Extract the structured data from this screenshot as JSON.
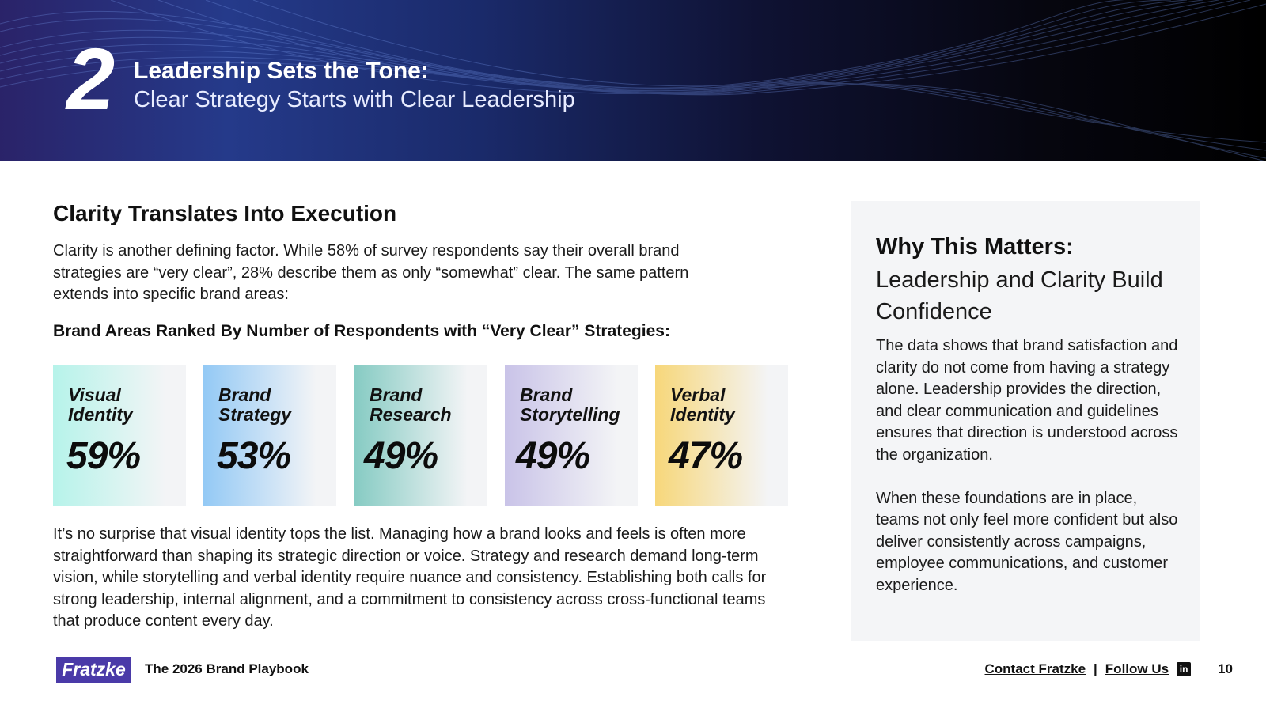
{
  "header": {
    "chapter_number": "2",
    "title": "Leadership Sets the Tone:",
    "subtitle": "Clear Strategy Starts with Clear Leadership"
  },
  "main": {
    "section_title": "Clarity Translates Into Execution",
    "intro": "Clarity is another defining factor. While 58% of survey respondents say their overall brand strategies are “very clear”, 28% describe them as only “somewhat” clear. The same pattern extends into specific brand areas:",
    "ranked_heading": "Brand Areas Ranked By Number of Respondents with “Very Clear” Strategies:",
    "cards": [
      {
        "label_line1": "Visual",
        "label_line2": "Identity",
        "value": "59%",
        "color": "#b6f3ea"
      },
      {
        "label_line1": "Brand",
        "label_line2": "Strategy",
        "value": "53%",
        "color": "#93c9f5"
      },
      {
        "label_line1": "Brand",
        "label_line2": "Research",
        "value": "49%",
        "color": "#86cbc3"
      },
      {
        "label_line1": "Brand",
        "label_line2": "Storytelling",
        "value": "49%",
        "color": "#c9c3e8"
      },
      {
        "label_line1": "Verbal",
        "label_line2": "Identity",
        "value": "47%",
        "color": "#f7d77a"
      }
    ],
    "outro": "It’s no surprise that visual identity tops the list. Managing how a brand looks and feels is often more straightforward than shaping its strategic direction or voice. Strategy and research demand long-term vision, while storytelling and verbal identity require nuance and consistency. Establishing both calls for strong leadership, internal alignment, and a commitment to consistency across cross-functional teams that produce content every day."
  },
  "sidebar": {
    "title": "Why This Matters:",
    "subtitle": "Leadership and Clarity Build Confidence",
    "paragraph1": "The data shows that brand satisfaction and clarity do not come from having a strategy alone. Leadership provides the direction, and clear communication and guidelines ensures that direction is understood across the organization.",
    "paragraph2": "When these foundations are in place, teams not only feel more confident but also deliver consistently across campaigns, employee communications, and customer experience."
  },
  "footer": {
    "logo_text": "Fratzke",
    "publication": "The 2026 Brand Playbook",
    "contact_link": "Contact Fratzke",
    "separator": "|",
    "follow_link": "Follow Us",
    "linkedin_icon": "linkedin-icon",
    "linkedin_glyph": "in",
    "page_number": "10"
  }
}
